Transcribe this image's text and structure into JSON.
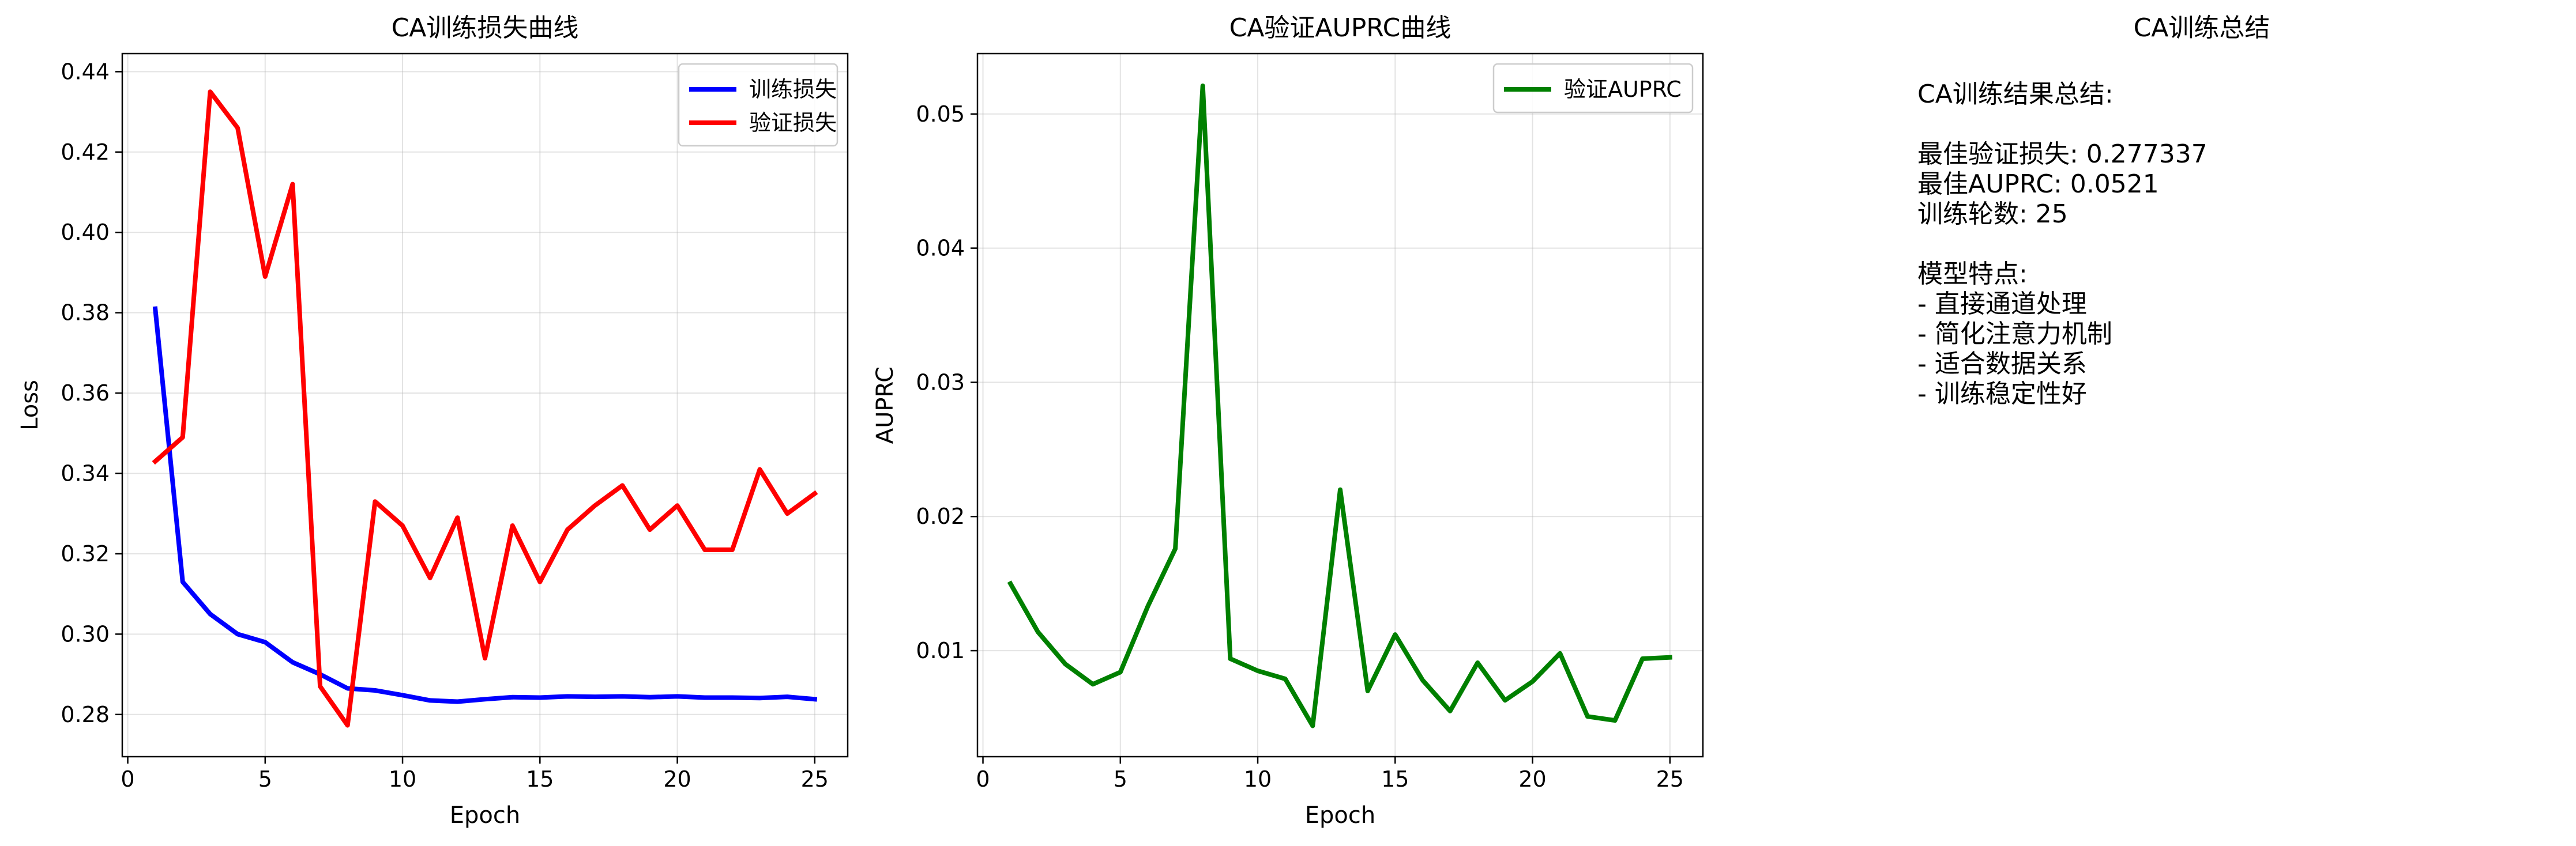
{
  "panel3": {
    "title": "CA训练总结",
    "lines": [
      "CA训练结果总结:",
      "",
      "最佳验证损失: 0.277337",
      "最佳AUPRC: 0.0521",
      "训练轮数: 25",
      "",
      "模型特点:",
      "- 直接通道处理",
      "- 简化注意力机制",
      "- 适合数据关系",
      "- 训练稳定性好"
    ]
  },
  "chart_data": [
    {
      "type": "line",
      "title": "CA训练损失曲线",
      "xlabel": "Epoch",
      "ylabel": "Loss",
      "xlim": [
        -0.2,
        26.2
      ],
      "ylim": [
        0.2695,
        0.4445
      ],
      "xticks": [
        0,
        5,
        10,
        15,
        20,
        25
      ],
      "yticks": [
        0.28,
        0.3,
        0.32,
        0.34,
        0.36,
        0.38,
        0.4,
        0.42,
        0.44
      ],
      "ytick_labels": [
        "0.28",
        "0.30",
        "0.32",
        "0.34",
        "0.36",
        "0.38",
        "0.40",
        "0.42",
        "0.44"
      ],
      "grid": true,
      "legend": "top-right",
      "x": [
        1,
        2,
        3,
        4,
        5,
        6,
        7,
        8,
        9,
        10,
        11,
        12,
        13,
        14,
        15,
        16,
        17,
        18,
        19,
        20,
        21,
        22,
        23,
        24,
        25
      ],
      "series": [
        {
          "name": "训练损失",
          "color": "#0000ff",
          "values": [
            0.381,
            0.313,
            0.305,
            0.3,
            0.298,
            0.293,
            0.29,
            0.2865,
            0.286,
            0.2848,
            0.2835,
            0.2832,
            0.2838,
            0.2843,
            0.2842,
            0.2845,
            0.2844,
            0.2845,
            0.2843,
            0.2845,
            0.2842,
            0.2842,
            0.2841,
            0.2844,
            0.2838
          ]
        },
        {
          "name": "验证损失",
          "color": "#ff0000",
          "values": [
            0.343,
            0.349,
            0.435,
            0.426,
            0.389,
            0.412,
            0.287,
            0.2773,
            0.333,
            0.327,
            0.314,
            0.329,
            0.294,
            0.327,
            0.313,
            0.326,
            0.332,
            0.337,
            0.326,
            0.332,
            0.321,
            0.321,
            0.341,
            0.33,
            0.335
          ]
        }
      ]
    },
    {
      "type": "line",
      "title": "CA验证AUPRC曲线",
      "xlabel": "Epoch",
      "ylabel": "AUPRC",
      "xlim": [
        -0.2,
        26.2
      ],
      "ylim": [
        0.0021,
        0.0545
      ],
      "xticks": [
        0,
        5,
        10,
        15,
        20,
        25
      ],
      "yticks": [
        0.01,
        0.02,
        0.03,
        0.04,
        0.05
      ],
      "ytick_labels": [
        "0.01",
        "0.02",
        "0.03",
        "0.04",
        "0.05"
      ],
      "grid": true,
      "legend": "top-right",
      "x": [
        1,
        2,
        3,
        4,
        5,
        6,
        7,
        8,
        9,
        10,
        11,
        12,
        13,
        14,
        15,
        16,
        17,
        18,
        19,
        20,
        21,
        22,
        23,
        24,
        25
      ],
      "series": [
        {
          "name": "验证AUPRC",
          "color": "#008000",
          "values": [
            0.015,
            0.0114,
            0.009,
            0.0075,
            0.0084,
            0.0133,
            0.0176,
            0.0521,
            0.0094,
            0.0085,
            0.0079,
            0.0044,
            0.022,
            0.007,
            0.0112,
            0.0078,
            0.0055,
            0.0091,
            0.0063,
            0.0077,
            0.0098,
            0.0051,
            0.0048,
            0.0094,
            0.0095
          ]
        }
      ]
    }
  ]
}
